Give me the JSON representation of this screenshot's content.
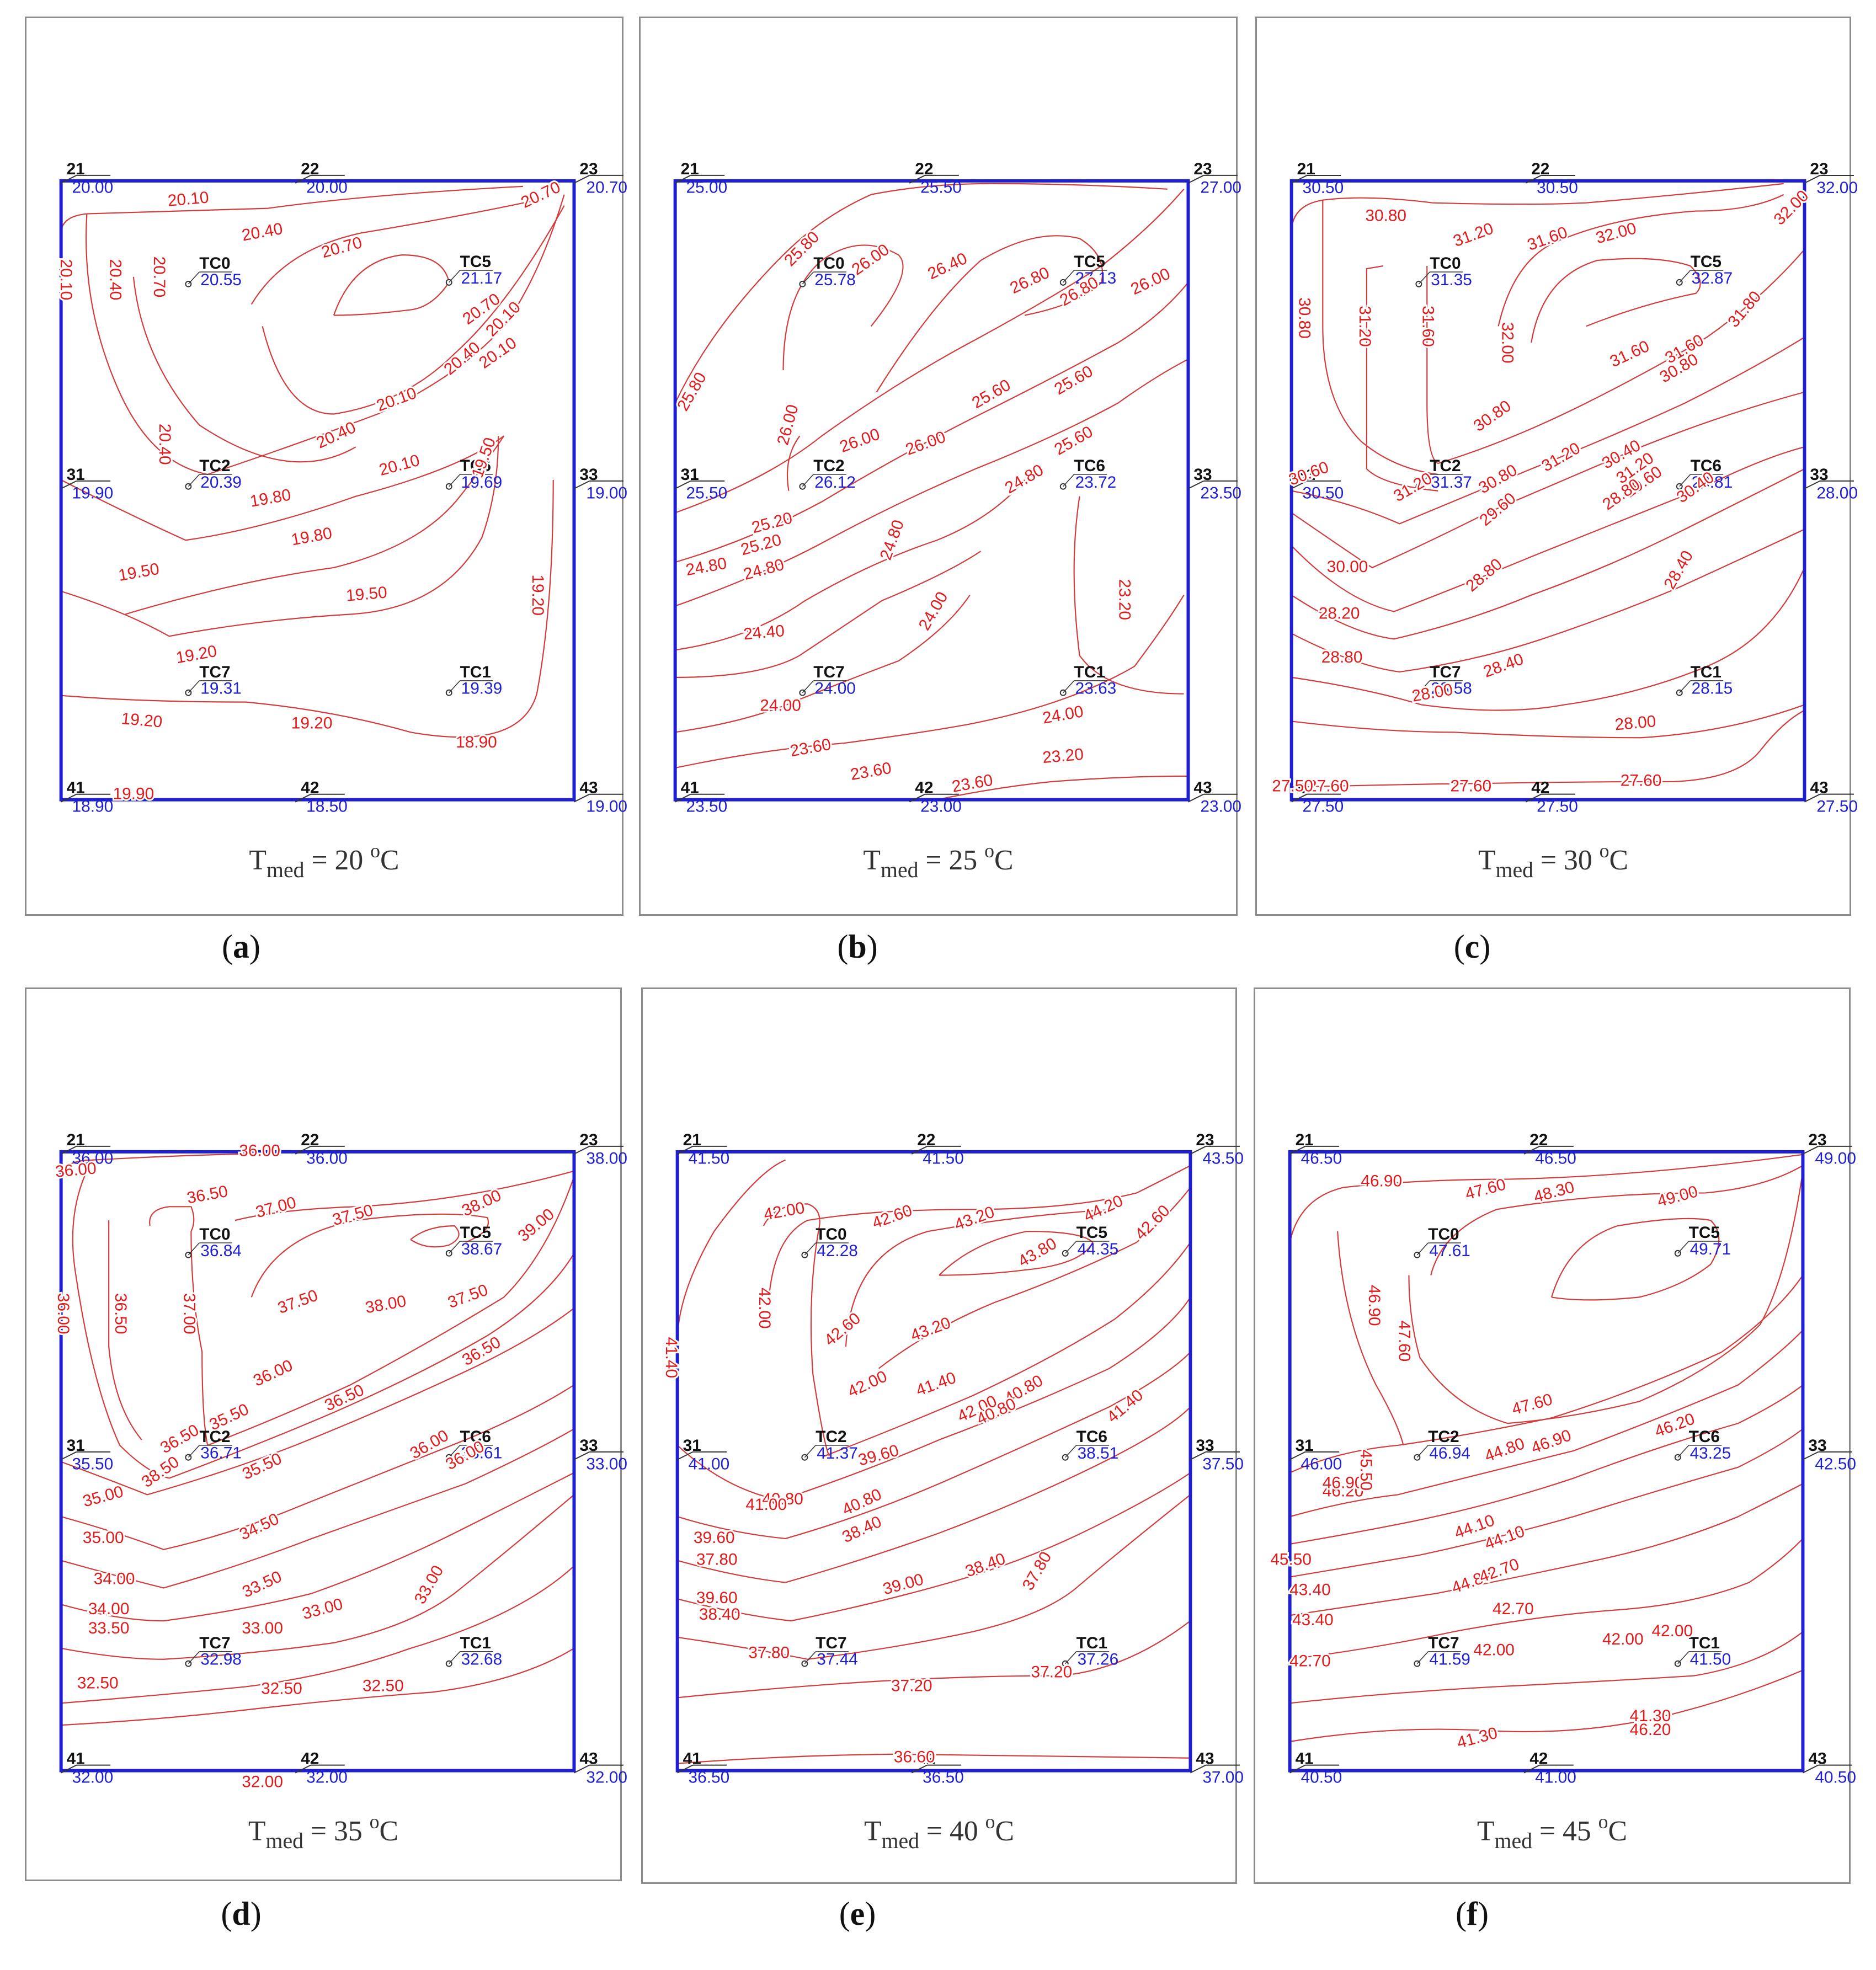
{
  "colors": {
    "frame": "#1e1ed2",
    "contour": "#d23c3c",
    "contour_label": "#e31a1c",
    "value": "#1f1fd6",
    "node": "#111111",
    "panel_border": "#8c8c8c"
  },
  "tmed_parts": {
    "prefix": "T",
    "sub": "med",
    "eq": " = ",
    "unit_sup": "o",
    "unit": "C"
  },
  "panels": [
    {
      "letter": "a",
      "tmed": "20",
      "nodes": {
        "21": "20.00",
        "22": "20.00",
        "23": "20.70",
        "31": "19.90",
        "33": "19.00",
        "41": "18.90",
        "42": "18.50",
        "43": "19.00"
      },
      "tc": {
        "TC0": "20.55",
        "TC5": "21.17",
        "TC2": "20.39",
        "TC6": "19.69",
        "TC7": "19.31",
        "TC1": "19.39"
      },
      "contour_labels": [
        "20.10",
        "20.40",
        "20.70",
        "20.70",
        "20.10",
        "20.40",
        "20.70",
        "20.10",
        "20.70",
        "20.40",
        "20.10",
        "20.40",
        "20.10",
        "20.10",
        "20.40",
        "19.80",
        "19.80",
        "19.50",
        "19.50",
        "19.20",
        "19.50",
        "19.20",
        "19.20",
        "19.20",
        "18.90",
        "19.90"
      ]
    },
    {
      "letter": "b",
      "tmed": "25",
      "nodes": {
        "21": "25.00",
        "22": "25.50",
        "23": "27.00",
        "31": "25.50",
        "33": "23.50",
        "41": "23.50",
        "42": "23.00",
        "43": "23.00"
      },
      "tc": {
        "TC0": "25.78",
        "TC5": "27.13",
        "TC2": "26.12",
        "TC6": "23.72",
        "TC7": "24.00",
        "TC1": "23.63"
      },
      "contour_labels": [
        "25.80",
        "26.00",
        "26.40",
        "26.80",
        "26.80",
        "26.00",
        "25.80",
        "26.00",
        "26.00",
        "25.60",
        "25.60",
        "26.00",
        "25.60",
        "24.80",
        "24.80",
        "24.00",
        "25.20",
        "24.80",
        "24.40",
        "24.00",
        "24.00",
        "23.60",
        "23.60",
        "23.20",
        "23.20",
        "23.60",
        "25.20",
        "24.80"
      ]
    },
    {
      "letter": "c",
      "tmed": "30",
      "nodes": {
        "21": "30.50",
        "22": "30.50",
        "23": "32.00",
        "31": "30.50",
        "33": "28.00",
        "41": "27.50",
        "42": "27.50",
        "43": "27.50"
      },
      "tc": {
        "TC0": "31.35",
        "TC5": "32.87",
        "TC2": "31.37",
        "TC6": "28.81",
        "TC7": "28.58",
        "TC1": "28.15"
      },
      "contour_labels": [
        "30.80",
        "31.20",
        "31.60",
        "32.00",
        "32.00",
        "30.80",
        "31.20",
        "31.60",
        "32.00",
        "31.60",
        "31.60",
        "31.80",
        "31.20",
        "30.80",
        "31.20",
        "30.40",
        "30.80",
        "30.80",
        "31.20",
        "30.60",
        "29.60",
        "28.80",
        "30.40",
        "29.60",
        "28.80",
        "30.00",
        "28.20",
        "28.80",
        "28.40",
        "28.40",
        "28.00",
        "28.00",
        "27.60",
        "27.60",
        "27.60",
        "27.50"
      ]
    },
    {
      "letter": "d",
      "tmed": "35",
      "nodes": {
        "21": "36.00",
        "22": "36.00",
        "23": "38.00",
        "31": "35.50",
        "33": "33.00",
        "41": "32.00",
        "42": "32.00",
        "43": "32.00"
      },
      "tc": {
        "TC0": "36.84",
        "TC5": "38.67",
        "TC2": "36.71",
        "TC6": "33.61",
        "TC7": "32.98",
        "TC1": "32.68"
      },
      "contour_labels": [
        "36.00",
        "36.00",
        "36.50",
        "37.00",
        "37.50",
        "38.00",
        "39.00",
        "36.00",
        "36.50",
        "37.00",
        "37.50",
        "38.00",
        "37.50",
        "36.50",
        "36.00",
        "36.50",
        "35.50",
        "36.00",
        "35.00",
        "34.00",
        "36.00",
        "35.50",
        "34.50",
        "33.50",
        "33.00",
        "35.00",
        "34.00",
        "33.50",
        "33.00",
        "33.00",
        "32.50",
        "32.50",
        "32.50",
        "32.00",
        "36.50",
        "38.50"
      ]
    },
    {
      "letter": "e",
      "tmed": "40",
      "nodes": {
        "21": "41.50",
        "22": "41.50",
        "23": "43.50",
        "31": "41.00",
        "33": "37.50",
        "41": "36.50",
        "42": "36.50",
        "43": "37.00"
      },
      "tc": {
        "TC0": "42.28",
        "TC5": "44.35",
        "TC2": "41.37",
        "TC6": "38.51",
        "TC7": "37.44",
        "TC1": "37.26"
      },
      "contour_labels": [
        "42.00",
        "42.60",
        "43.20",
        "44.20",
        "42.60",
        "42.00",
        "42.60",
        "43.20",
        "41.40",
        "42.00",
        "41.40",
        "40.80",
        "41.40",
        "42.00",
        "40.80",
        "40.80",
        "39.60",
        "40.80",
        "39.60",
        "38.40",
        "38.40",
        "37.80",
        "39.60",
        "39.00",
        "38.40",
        "37.80",
        "37.80",
        "37.20",
        "37.20",
        "36.60",
        "43.80",
        "41.00"
      ]
    },
    {
      "letter": "f",
      "tmed": "45",
      "nodes": {
        "21": "46.50",
        "22": "46.50",
        "23": "49.00",
        "31": "46.00",
        "33": "42.50",
        "41": "40.50",
        "42": "41.00",
        "43": "40.50"
      },
      "tc": {
        "TC0": "47.61",
        "TC5": "49.71",
        "TC2": "46.94",
        "TC6": "43.25",
        "TC7": "41.59",
        "TC1": "41.50"
      },
      "contour_labels": [
        "46.90",
        "47.60",
        "48.30",
        "49.00",
        "46.90",
        "47.60",
        "47.60",
        "46.90",
        "46.20",
        "46.20",
        "46.90",
        "45.50",
        "44.80",
        "44.10",
        "45.50",
        "44.80",
        "43.40",
        "44.10",
        "42.70",
        "43.40",
        "42.70",
        "42.70",
        "42.00",
        "42.00",
        "42.00",
        "41.30",
        "41.30",
        "46.20"
      ]
    }
  ]
}
